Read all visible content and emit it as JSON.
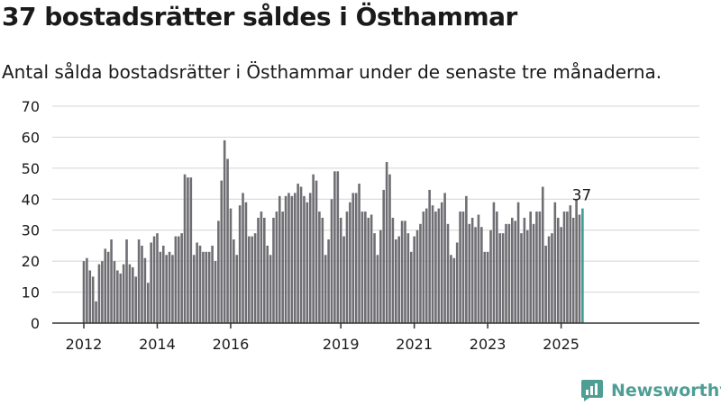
{
  "title": "37 bostadsrätter såldes i Östhammar",
  "subtitle": "Antal sålda bostadsrätter i Östhammar under de senaste tre månaderna.",
  "brand": {
    "name": "Newsworthy",
    "icon": "newsworthy-logo-icon"
  },
  "colors": {
    "bar": "#6f6e73",
    "highlight": "#3a9e96",
    "grid": "#d4d4d4",
    "axis": "#333333",
    "text": "#1a1a1a",
    "brand": "#4f9e94"
  },
  "chart_data": {
    "type": "bar",
    "title": "37 bostadsrätter såldes i Östhammar",
    "subtitle": "Antal sålda bostadsrätter i Östhammar under de senaste tre månaderna.",
    "xlabel": "",
    "ylabel": "",
    "ylim": [
      0,
      70
    ],
    "y_ticks": [
      0,
      10,
      20,
      30,
      40,
      50,
      60,
      70
    ],
    "grid": "horizontal",
    "legend": "none",
    "x_tick_labels": [
      {
        "label": "2012",
        "date": "2012-01"
      },
      {
        "label": "2014",
        "date": "2014-01"
      },
      {
        "label": "2016",
        "date": "2016-01"
      },
      {
        "label": "2019",
        "date": "2019-01"
      },
      {
        "label": "2021",
        "date": "2021-01"
      },
      {
        "label": "2023",
        "date": "2023-01"
      },
      {
        "label": "2025",
        "date": "2025-01"
      }
    ],
    "highlight": {
      "date": "2025-08",
      "value": 37,
      "label": "37"
    },
    "series": [
      {
        "x": [
          "2012-01",
          "2012-02",
          "2012-03",
          "2012-04",
          "2012-05",
          "2012-06",
          "2012-07",
          "2012-08",
          "2012-09",
          "2012-10",
          "2012-11",
          "2012-12",
          "2013-01",
          "2013-02",
          "2013-03",
          "2013-04",
          "2013-05",
          "2013-06",
          "2013-07",
          "2013-08",
          "2013-09",
          "2013-10",
          "2013-11",
          "2013-12",
          "2014-01",
          "2014-02",
          "2014-03",
          "2014-04",
          "2014-05",
          "2014-06",
          "2014-07",
          "2014-08",
          "2014-09",
          "2014-10",
          "2014-11",
          "2014-12",
          "2015-01",
          "2015-02",
          "2015-03",
          "2015-04",
          "2015-05",
          "2015-06",
          "2015-07",
          "2015-08",
          "2015-09",
          "2015-10",
          "2015-11",
          "2015-12",
          "2016-01",
          "2016-02",
          "2016-03",
          "2016-04",
          "2016-05",
          "2016-06",
          "2016-07",
          "2016-08",
          "2016-09",
          "2016-10",
          "2016-11",
          "2016-12",
          "2017-01",
          "2017-02",
          "2017-03",
          "2017-04",
          "2017-05",
          "2017-06",
          "2017-07",
          "2017-08",
          "2017-09",
          "2017-10",
          "2017-11",
          "2017-12",
          "2018-01",
          "2018-02",
          "2018-03",
          "2018-04",
          "2018-05",
          "2018-06",
          "2018-07",
          "2018-08",
          "2018-09",
          "2018-10",
          "2018-11",
          "2018-12",
          "2019-01",
          "2019-02",
          "2019-03",
          "2019-04",
          "2019-05",
          "2019-06",
          "2019-07",
          "2019-08",
          "2019-09",
          "2019-10",
          "2019-11",
          "2019-12",
          "2020-01",
          "2020-02",
          "2020-03",
          "2020-04",
          "2020-05",
          "2020-06",
          "2020-07",
          "2020-08",
          "2020-09",
          "2020-10",
          "2020-11",
          "2020-12",
          "2021-01",
          "2021-02",
          "2021-03",
          "2021-04",
          "2021-05",
          "2021-06",
          "2021-07",
          "2021-08",
          "2021-09",
          "2021-10",
          "2021-11",
          "2021-12",
          "2022-01",
          "2022-02",
          "2022-03",
          "2022-04",
          "2022-05",
          "2022-06",
          "2022-07",
          "2022-08",
          "2022-09",
          "2022-10",
          "2022-11",
          "2022-12",
          "2023-01",
          "2023-02",
          "2023-03",
          "2023-04",
          "2023-05",
          "2023-06",
          "2023-07",
          "2023-08",
          "2023-09",
          "2023-10",
          "2023-11",
          "2023-12",
          "2024-01",
          "2024-02",
          "2024-03",
          "2024-04",
          "2024-05",
          "2024-06",
          "2024-07",
          "2024-08",
          "2024-09",
          "2024-10",
          "2024-11",
          "2024-12",
          "2025-01",
          "2025-02",
          "2025-03",
          "2025-04",
          "2025-05",
          "2025-06",
          "2025-07",
          "2025-08"
        ],
        "values": [
          20,
          21,
          17,
          15,
          7,
          19,
          20,
          24,
          23,
          27,
          20,
          17,
          16,
          19,
          27,
          19,
          18,
          15,
          27,
          25,
          21,
          13,
          26,
          28,
          29,
          23,
          25,
          22,
          23,
          22,
          28,
          28,
          29,
          48,
          47,
          47,
          22,
          26,
          25,
          23,
          23,
          23,
          25,
          20,
          33,
          46,
          59,
          53,
          37,
          27,
          22,
          38,
          42,
          39,
          28,
          28,
          29,
          34,
          36,
          34,
          25,
          22,
          34,
          36,
          41,
          36,
          41,
          42,
          41,
          42,
          45,
          44,
          41,
          39,
          42,
          48,
          46,
          36,
          34,
          22,
          27,
          40,
          49,
          49,
          34,
          28,
          36,
          39,
          42,
          42,
          45,
          36,
          36,
          34,
          35,
          29,
          22,
          30,
          43,
          52,
          48,
          34,
          27,
          28,
          33,
          33,
          29,
          23,
          28,
          30,
          32,
          36,
          37,
          43,
          38,
          36,
          37,
          39,
          42,
          32,
          22,
          21,
          26,
          36,
          36,
          41,
          32,
          34,
          31,
          35,
          31,
          23,
          23,
          30,
          39,
          36,
          29,
          29,
          32,
          32,
          34,
          33,
          39,
          29,
          34,
          30,
          36,
          32,
          36,
          36,
          44,
          25,
          28,
          29,
          39,
          34,
          31,
          36,
          36,
          38,
          34,
          40,
          35,
          37
        ]
      }
    ]
  }
}
